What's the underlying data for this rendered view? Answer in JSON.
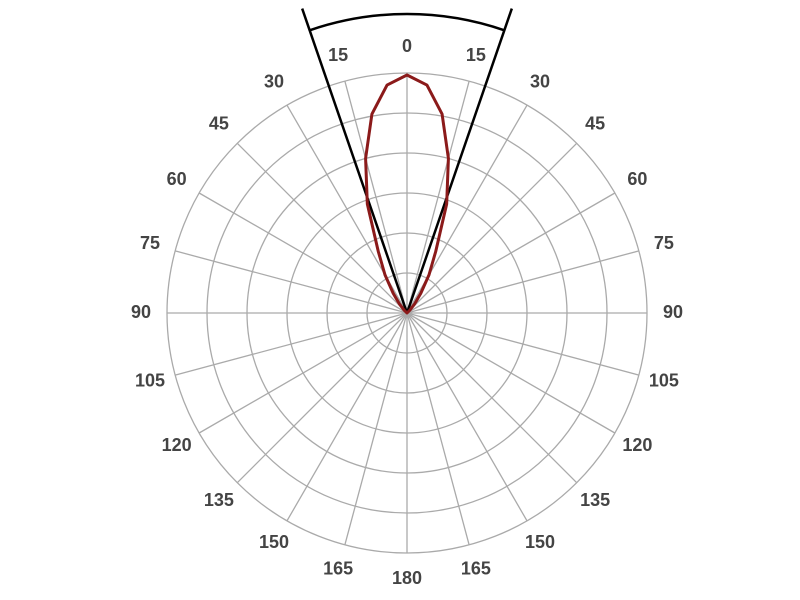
{
  "chart_data": {
    "type": "polar",
    "thetaticks": [
      0,
      15,
      30,
      45,
      60,
      75,
      90,
      105,
      120,
      135,
      150,
      165,
      180,
      {
        "value": -15,
        "label": "15"
      },
      {
        "value": -30,
        "label": "30"
      },
      {
        "value": -45,
        "label": "45"
      },
      {
        "value": -60,
        "label": "60"
      },
      {
        "value": -75,
        "label": "75"
      },
      {
        "value": -90,
        "label": "90"
      },
      {
        "value": -105,
        "label": "105"
      },
      {
        "value": -120,
        "label": "120"
      },
      {
        "value": -135,
        "label": "135"
      },
      {
        "value": -150,
        "label": "150"
      },
      {
        "value": -165,
        "label": "165"
      }
    ],
    "rlim": [
      0,
      6
    ],
    "rticks": [
      1,
      2,
      3,
      4,
      5,
      6
    ],
    "grid": true,
    "beam_angles": [
      -19,
      19
    ],
    "beam_color": "#000000",
    "series": [
      {
        "color": "#8b1a1a",
        "x": [
          -50,
          -45,
          -40,
          -35,
          -30,
          -25,
          -20,
          -15,
          -10,
          -5,
          0,
          5,
          10,
          15,
          20,
          25,
          30,
          35,
          40,
          45,
          50
        ],
        "values": [
          0,
          0.1,
          0.3,
          0.6,
          1.1,
          1.7,
          2.9,
          4.0,
          5.05,
          5.72,
          5.95,
          5.72,
          5.05,
          4.0,
          2.9,
          1.7,
          1.1,
          0.6,
          0.3,
          0.1,
          0
        ]
      }
    ]
  }
}
